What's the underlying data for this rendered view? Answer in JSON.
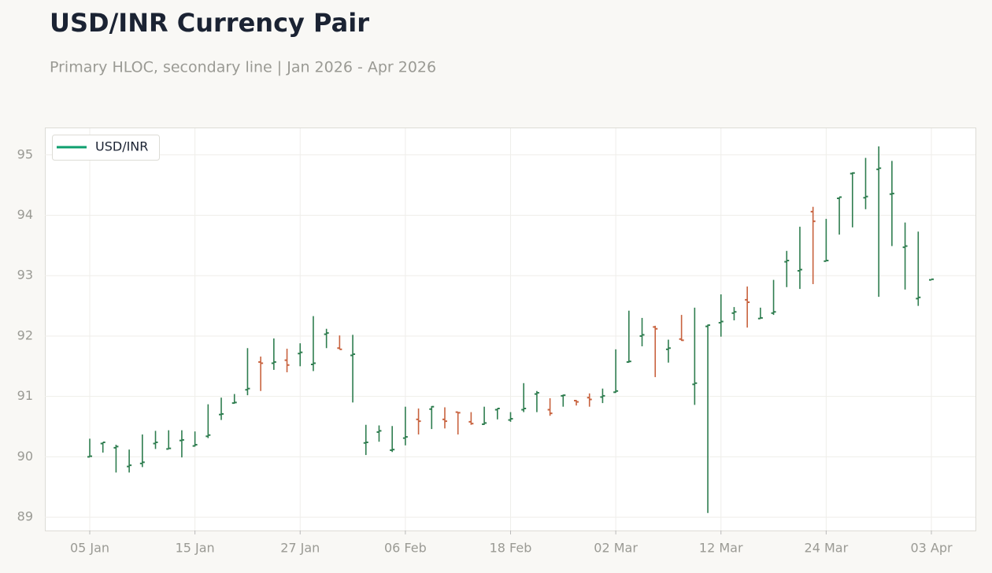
{
  "chart_data": {
    "type": "ohlc",
    "title": "USD/INR Currency Pair",
    "subtitle": "Primary HLOC, secondary line | Jan 2026 - Apr 2026",
    "categories": [
      "05 Jan",
      null,
      null,
      null,
      null,
      null,
      null,
      null,
      "15 Jan",
      null,
      null,
      null,
      null,
      null,
      null,
      null,
      "27 Jan",
      null,
      null,
      null,
      null,
      null,
      null,
      null,
      "06 Feb",
      null,
      null,
      null,
      null,
      null,
      null,
      null,
      "18 Feb",
      null,
      null,
      null,
      null,
      null,
      null,
      null,
      "02 Mar",
      null,
      null,
      null,
      null,
      null,
      null,
      null,
      "12 Mar",
      null,
      null,
      null,
      null,
      null,
      null,
      null,
      "24 Mar",
      null,
      null,
      null,
      null,
      null,
      null,
      null,
      "03 Apr"
    ],
    "series": [
      {
        "name": "USD/INR",
        "color": "#0e9f6e",
        "open": [
          90.0,
          90.22,
          90.15,
          89.84,
          89.89,
          90.22,
          90.13,
          90.27,
          90.18,
          90.34,
          90.7,
          90.89,
          91.11,
          91.57,
          91.55,
          91.6,
          91.71,
          91.53,
          92.03,
          91.8,
          91.68,
          90.23,
          90.41,
          90.11,
          90.31,
          90.62,
          90.79,
          90.62,
          90.74,
          90.58,
          90.54,
          90.78,
          90.61,
          90.78,
          91.04,
          90.78,
          91.01,
          90.93,
          90.98,
          90.99,
          91.07,
          91.57,
          92.0,
          92.15,
          91.78,
          91.95,
          91.2,
          92.16,
          92.22,
          92.38,
          92.6,
          92.29,
          92.38,
          93.23,
          93.08,
          94.06,
          93.24,
          94.28,
          94.69,
          94.29,
          94.76,
          94.35,
          93.47,
          92.62,
          92.93
        ],
        "high": [
          90.3,
          90.24,
          90.2,
          90.12,
          90.37,
          90.43,
          90.44,
          90.44,
          90.42,
          90.87,
          90.98,
          91.04,
          91.8,
          91.66,
          91.96,
          91.79,
          91.88,
          92.33,
          92.12,
          92.01,
          92.02,
          90.53,
          90.52,
          90.51,
          90.83,
          90.8,
          90.84,
          90.82,
          90.74,
          90.74,
          90.83,
          90.8,
          90.74,
          91.22,
          91.09,
          90.97,
          91.03,
          90.94,
          91.05,
          91.13,
          91.78,
          92.42,
          92.3,
          92.17,
          91.94,
          92.35,
          92.47,
          92.19,
          92.69,
          92.48,
          92.82,
          92.47,
          92.93,
          93.41,
          93.81,
          94.14,
          93.94,
          94.3,
          94.71,
          94.95,
          95.14,
          94.9,
          93.88,
          93.73,
          92.94
        ],
        "low": [
          90.0,
          90.07,
          89.74,
          89.74,
          89.83,
          90.13,
          90.13,
          89.99,
          90.17,
          90.31,
          90.61,
          90.88,
          91.02,
          91.09,
          91.44,
          91.4,
          91.5,
          91.42,
          91.8,
          91.78,
          90.9,
          90.03,
          90.25,
          90.08,
          90.19,
          90.37,
          90.46,
          90.47,
          90.37,
          90.53,
          90.53,
          90.62,
          90.58,
          90.74,
          90.74,
          90.68,
          90.83,
          90.85,
          90.83,
          90.89,
          91.06,
          91.56,
          91.83,
          91.32,
          91.56,
          91.92,
          90.86,
          89.07,
          91.99,
          92.26,
          92.14,
          92.29,
          92.35,
          92.81,
          92.78,
          92.86,
          93.24,
          93.68,
          93.8,
          94.1,
          92.65,
          93.49,
          92.77,
          92.5,
          92.93
        ],
        "close": [
          90.01,
          90.24,
          90.17,
          89.86,
          89.91,
          90.24,
          90.14,
          90.28,
          90.2,
          90.36,
          90.71,
          90.9,
          91.13,
          91.55,
          91.57,
          91.52,
          91.73,
          91.55,
          92.05,
          91.78,
          91.7,
          90.24,
          90.43,
          90.12,
          90.33,
          90.59,
          90.83,
          90.59,
          90.73,
          90.55,
          90.56,
          90.8,
          90.63,
          90.8,
          91.06,
          90.72,
          91.02,
          90.91,
          90.95,
          91.01,
          91.09,
          91.58,
          92.02,
          92.12,
          91.8,
          91.93,
          91.22,
          92.18,
          92.24,
          92.4,
          92.56,
          92.3,
          92.4,
          93.25,
          93.1,
          93.9,
          93.25,
          94.3,
          94.7,
          94.31,
          94.78,
          94.36,
          93.49,
          92.64,
          92.94
        ]
      }
    ],
    "up_color": "#2e7d4f",
    "down_color": "#c8623e",
    "ylim": [
      88.78,
      95.44
    ],
    "yticks": [
      89,
      90,
      91,
      92,
      93,
      94,
      95
    ],
    "grid": true,
    "legend": "upper left"
  }
}
